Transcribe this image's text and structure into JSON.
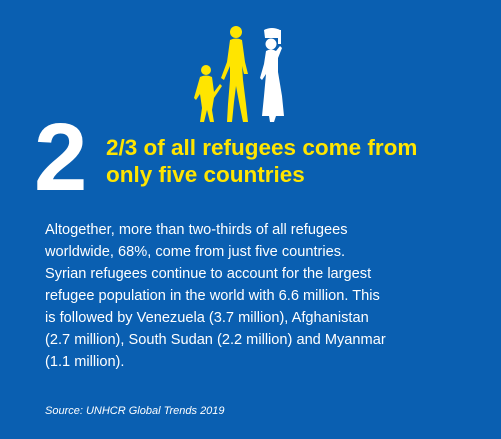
{
  "colors": {
    "background": "#0a5fb1",
    "accent_yellow": "#ffe500",
    "text_white": "#ffffff"
  },
  "illustration": {
    "icon": "family-refugees-icon"
  },
  "big_number": "2",
  "headline": {
    "line1": "2/3 of all refugees come from",
    "line2": "only five countries"
  },
  "body": {
    "line1": "Altogether, more than two-thirds of all refugees",
    "line2": "worldwide, 68%, come from just five countries.",
    "line3": "Syrian refugees continue to account for the largest",
    "line4": "refugee population in the world with 6.6 million. This",
    "line5": "is followed by Venezuela (3.7 million), Afghanistan",
    "line6": "(2.7 million), South Sudan (2.2 million) and Myanmar",
    "line7": "(1.1 million)."
  },
  "source": "Source: UNHCR Global Trends 2019"
}
